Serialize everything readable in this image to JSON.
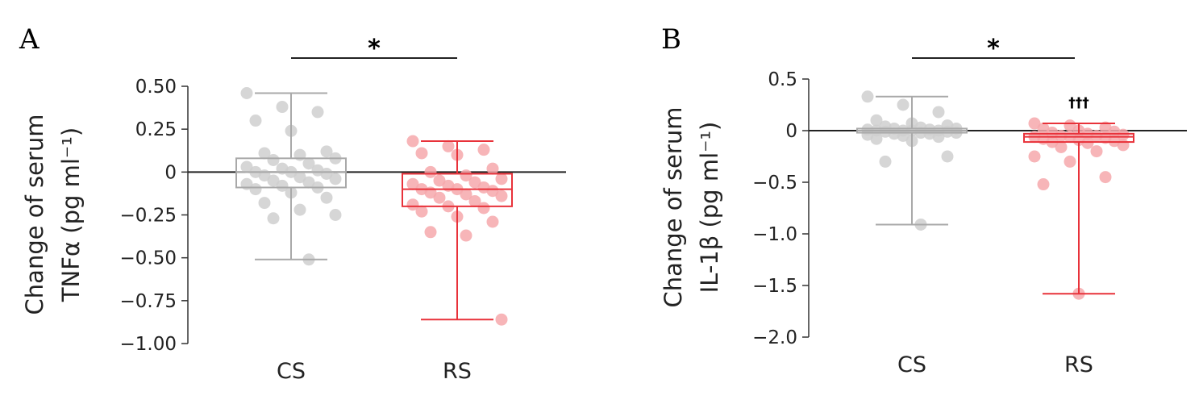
{
  "chart_data": [
    {
      "type": "box",
      "panel": "A",
      "ylabel": [
        "Change of serum",
        "TNFα (pg ml⁻¹)"
      ],
      "categories": [
        "CS",
        "RS"
      ],
      "ylim": [
        -1.0,
        0.5
      ],
      "yticks": [
        0.5,
        0.25,
        0,
        -0.25,
        -0.5,
        -0.75,
        -1.0
      ],
      "ytick_labels": [
        "0.50",
        "0.25",
        "0",
        "−0.25",
        "−0.50",
        "−0.75",
        "−1.00"
      ],
      "reference_line": 0,
      "significance": "*",
      "colors": [
        "#a9a9a9",
        "#e8323a"
      ],
      "point_colors": [
        "#cfcfcf",
        "#f6a8ab"
      ],
      "boxes": [
        {
          "name": "CS",
          "q1": -0.09,
          "median": 0.0,
          "q3": 0.08,
          "whisker_low": -0.51,
          "whisker_high": 0.46
        },
        {
          "name": "RS",
          "q1": -0.2,
          "median": -0.1,
          "q3": -0.01,
          "whisker_low": -0.86,
          "whisker_high": 0.18
        }
      ],
      "points": [
        [
          0.46,
          0.38,
          0.35,
          0.3,
          0.24,
          0.12,
          0.11,
          0.1,
          0.08,
          0.07,
          0.05,
          0.03,
          0.02,
          0.01,
          0.0,
          0.0,
          -0.01,
          -0.02,
          -0.03,
          -0.04,
          -0.05,
          -0.06,
          -0.07,
          -0.08,
          -0.09,
          -0.1,
          -0.12,
          -0.15,
          -0.18,
          -0.22,
          -0.25,
          -0.27,
          -0.51
        ],
        [
          0.18,
          0.15,
          0.13,
          0.11,
          0.1,
          0.02,
          0.0,
          -0.02,
          -0.04,
          -0.05,
          -0.06,
          -0.07,
          -0.08,
          -0.09,
          -0.1,
          -0.1,
          -0.11,
          -0.12,
          -0.13,
          -0.14,
          -0.15,
          -0.17,
          -0.19,
          -0.2,
          -0.21,
          -0.23,
          -0.26,
          -0.29,
          -0.35,
          -0.37,
          -0.86
        ]
      ]
    },
    {
      "type": "box",
      "panel": "B",
      "ylabel": [
        "Change of serum",
        "IL-1β (pg ml⁻¹)"
      ],
      "categories": [
        "CS",
        "RS"
      ],
      "ylim": [
        -2.0,
        0.5
      ],
      "yticks": [
        0.5,
        0,
        -0.5,
        -1.0,
        -1.5,
        -2.0
      ],
      "ytick_labels": [
        "0.5",
        "0",
        "−0.5",
        "−1.0",
        "−1.5",
        "−2.0"
      ],
      "reference_line": 0,
      "significance": "*",
      "rs_marker": "†††",
      "colors": [
        "#a9a9a9",
        "#e8323a"
      ],
      "point_colors": [
        "#cfcfcf",
        "#f6a8ab"
      ],
      "boxes": [
        {
          "name": "CS",
          "q1": -0.02,
          "median": 0.0,
          "q3": 0.02,
          "whisker_low": -0.91,
          "whisker_high": 0.33
        },
        {
          "name": "RS",
          "q1": -0.11,
          "median": -0.06,
          "q3": -0.03,
          "whisker_low": -1.58,
          "whisker_high": 0.07
        }
      ],
      "points": [
        [
          0.33,
          0.25,
          0.18,
          0.1,
          0.07,
          0.05,
          0.04,
          0.03,
          0.02,
          0.02,
          0.01,
          0.01,
          0.0,
          0.0,
          0.0,
          0.0,
          -0.01,
          -0.01,
          -0.02,
          -0.02,
          -0.03,
          -0.03,
          -0.04,
          -0.05,
          -0.06,
          -0.08,
          -0.1,
          -0.25,
          -0.3,
          -0.91
        ],
        [
          0.07,
          0.05,
          0.03,
          0.02,
          0.0,
          -0.01,
          -0.02,
          -0.03,
          -0.04,
          -0.05,
          -0.05,
          -0.06,
          -0.06,
          -0.07,
          -0.08,
          -0.09,
          -0.1,
          -0.11,
          -0.12,
          -0.14,
          -0.16,
          -0.2,
          -0.25,
          -0.3,
          -0.45,
          -0.52,
          -1.58
        ]
      ]
    }
  ]
}
